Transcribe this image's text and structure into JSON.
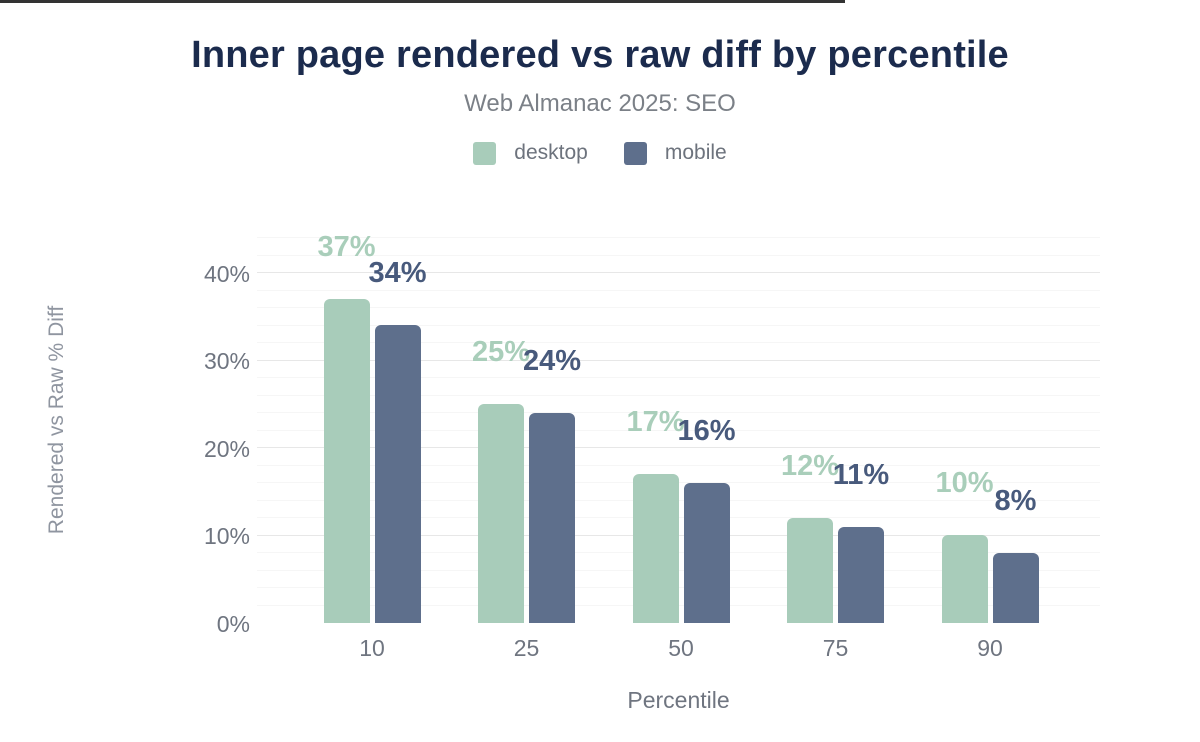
{
  "chart_data": {
    "type": "bar",
    "title": "Inner page rendered vs raw diff by percentile",
    "subtitle": "Web Almanac 2025: SEO",
    "xlabel": "Percentile",
    "ylabel": "Rendered vs Raw % Diff",
    "categories": [
      "10",
      "25",
      "50",
      "75",
      "90"
    ],
    "series": [
      {
        "name": "desktop",
        "color": "#a8ccba",
        "label_color": "#a9ceba",
        "values": [
          37,
          25,
          17,
          12,
          10
        ],
        "labels": [
          "37%",
          "25%",
          "17%",
          "12%",
          "10%"
        ]
      },
      {
        "name": "mobile",
        "color": "#5e6f8c",
        "label_color": "#485a7c",
        "values": [
          34,
          24,
          16,
          11,
          8
        ],
        "labels": [
          "34%",
          "24%",
          "16%",
          "11%",
          "8%"
        ]
      }
    ],
    "yticks": [
      {
        "value": 0,
        "label": "0%"
      },
      {
        "value": 10,
        "label": "10%"
      },
      {
        "value": 20,
        "label": "20%"
      },
      {
        "value": 30,
        "label": "30%"
      },
      {
        "value": 40,
        "label": "40%"
      }
    ],
    "ylim": [
      0,
      44
    ],
    "grid": {
      "major_step": 10,
      "minor_step": 2,
      "visible": true
    },
    "legend_position": "top",
    "colors": {
      "title": "#1b2b4d",
      "subtitle": "#7b8087",
      "legend_text": "#6d737d",
      "axis_text": "#6f7580",
      "y_axis_title_text": "#8f95a0",
      "axis_line": "#333333",
      "grid_major": "#e7e7e7",
      "grid_minor": "#f6f6f6",
      "background": "#ffffff"
    }
  }
}
